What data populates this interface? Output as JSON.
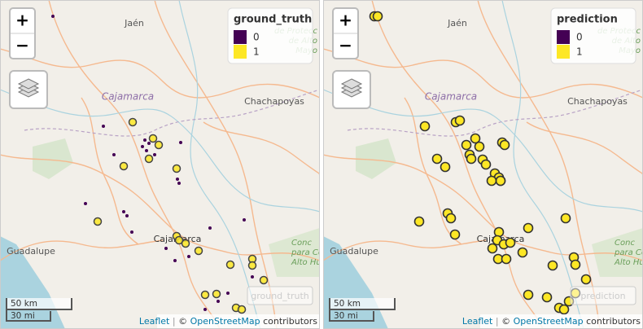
{
  "panels": [
    {
      "zoom": {
        "in": "+",
        "out": "−"
      },
      "legend": {
        "title": "ground_truth",
        "items": [
          {
            "label": "0",
            "color": "#440154"
          },
          {
            "label": "1",
            "color": "#fde725"
          }
        ]
      },
      "places": {
        "jaen": "Jaén",
        "region": "Cajamarca",
        "chachapoyas": "Chachapoyas",
        "guadalupe": "Guadalupe",
        "city": "Cajamarca"
      },
      "protected_area": [
        "de Protecc",
        "de Alto",
        "Mayo"
      ],
      "concession": [
        "Conc",
        "para Con",
        "Alto Huay"
      ],
      "button": "ground_truth",
      "scale": {
        "km": "50 km",
        "mi": "30 mi"
      },
      "attribution": {
        "leaflet": "Leaflet",
        "separator": "|",
        "copyright": "©",
        "osm": "OpenStreetMap",
        "text": "contributors"
      }
    },
    {
      "zoom": {
        "in": "+",
        "out": "−"
      },
      "legend": {
        "title": "prediction",
        "items": [
          {
            "label": "0",
            "color": "#440154"
          },
          {
            "label": "1",
            "color": "#fde725"
          }
        ]
      },
      "places": {
        "jaen": "Jaén",
        "region": "Cajamarca",
        "chachapoyas": "Chachapoyas",
        "guadalupe": "Guadalupe",
        "city": "Cajamarca"
      },
      "protected_area": [
        "de Protecc",
        "de Alto",
        "Mayo"
      ],
      "concession": [
        "Conc",
        "para Con",
        "Alto Huay"
      ],
      "button": "prediction",
      "scale": {
        "km": "50 km",
        "mi": "30 mi"
      },
      "attribution": {
        "leaflet": "Leaflet",
        "separator": "|",
        "copyright": "©",
        "osm": "OpenStreetMap",
        "text": "contributors"
      }
    }
  ]
}
